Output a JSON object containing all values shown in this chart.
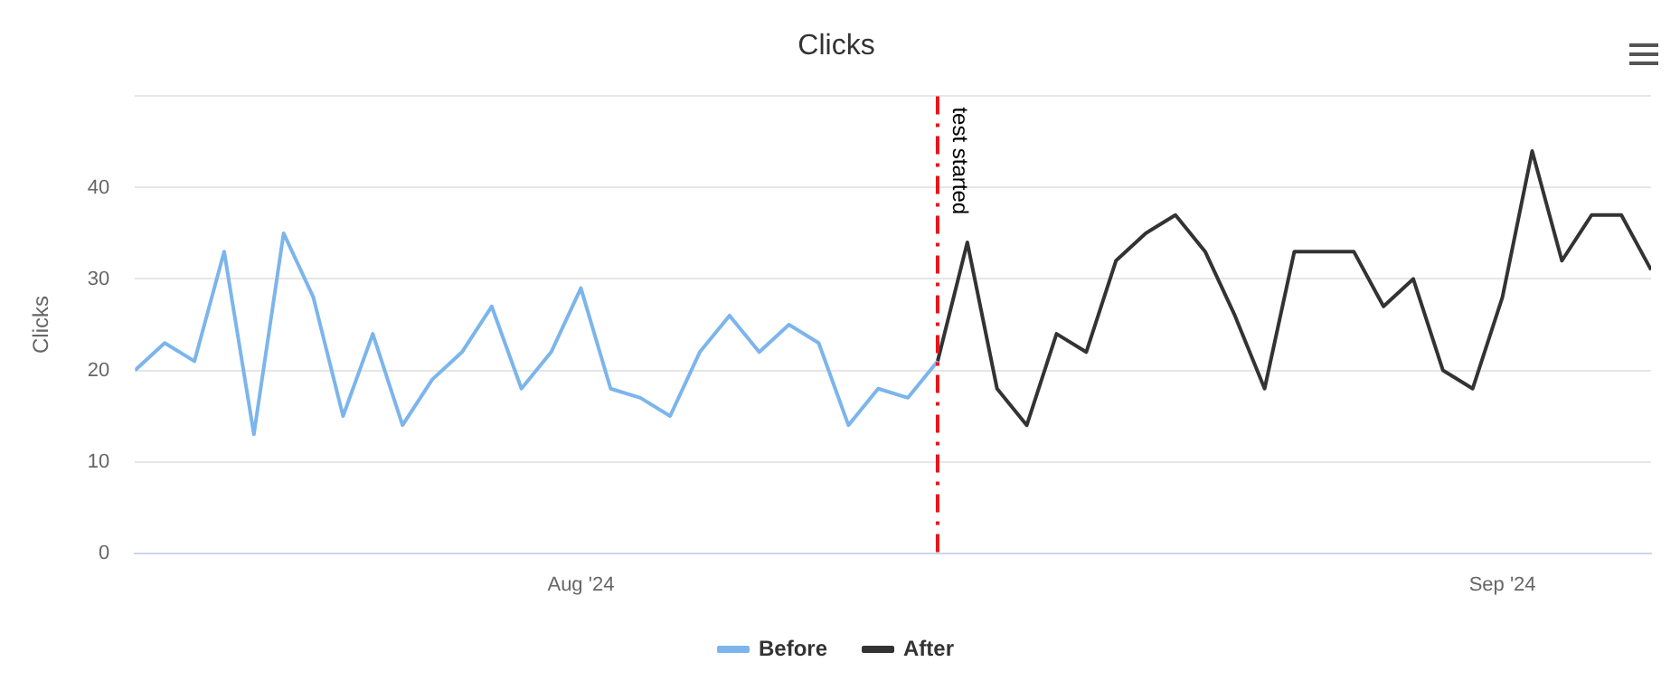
{
  "chart_data": {
    "type": "line",
    "title": "Clicks",
    "ylabel": "Clicks",
    "xlim": [
      "2024-07-17",
      "2024-09-06"
    ],
    "xticks": [
      {
        "value": "2024-08-01",
        "label": "Aug '24"
      },
      {
        "value": "2024-09-01",
        "label": "Sep '24"
      }
    ],
    "ylim": [
      0,
      50
    ],
    "yticks": [
      0,
      10,
      20,
      30,
      40,
      {
        "value": 50,
        "label": null
      }
    ],
    "series": [
      {
        "name": "Before",
        "color": "#7cb5ec",
        "x": [
          "2024-07-17",
          "2024-07-18",
          "2024-07-19",
          "2024-07-20",
          "2024-07-21",
          "2024-07-22",
          "2024-07-23",
          "2024-07-24",
          "2024-07-25",
          "2024-07-26",
          "2024-07-27",
          "2024-07-28",
          "2024-07-29",
          "2024-07-30",
          "2024-07-31",
          "2024-08-01",
          "2024-08-02",
          "2024-08-03",
          "2024-08-04",
          "2024-08-05",
          "2024-08-06",
          "2024-08-07",
          "2024-08-08",
          "2024-08-09",
          "2024-08-10",
          "2024-08-11",
          "2024-08-12",
          "2024-08-13"
        ],
        "values": [
          20,
          23,
          21,
          33,
          13,
          35,
          28,
          15,
          24,
          14,
          19,
          22,
          27,
          18,
          22,
          29,
          18,
          17,
          15,
          22,
          26,
          22,
          25,
          23,
          14,
          18,
          17,
          21
        ]
      },
      {
        "name": "After",
        "color": "#333333",
        "x": [
          "2024-08-13",
          "2024-08-14",
          "2024-08-15",
          "2024-08-16",
          "2024-08-17",
          "2024-08-18",
          "2024-08-19",
          "2024-08-20",
          "2024-08-21",
          "2024-08-22",
          "2024-08-23",
          "2024-08-24",
          "2024-08-25",
          "2024-08-26",
          "2024-08-27",
          "2024-08-28",
          "2024-08-29",
          "2024-08-30",
          "2024-08-31",
          "2024-09-01",
          "2024-09-02",
          "2024-09-03",
          "2024-09-04",
          "2024-09-05",
          "2024-09-06"
        ],
        "values": [
          21,
          34,
          18,
          14,
          24,
          22,
          32,
          35,
          37,
          33,
          26,
          18,
          33,
          33,
          33,
          27,
          30,
          20,
          18,
          28,
          44,
          32,
          37,
          37,
          31
        ]
      }
    ],
    "ref_lines": [
      {
        "axis": "x",
        "value": "2024-08-13",
        "label": "test started",
        "color": "#e8141b",
        "line_style": "dashed"
      }
    ],
    "grid": "y",
    "legend": "bottom",
    "marker": "none",
    "line_style": "solid"
  }
}
